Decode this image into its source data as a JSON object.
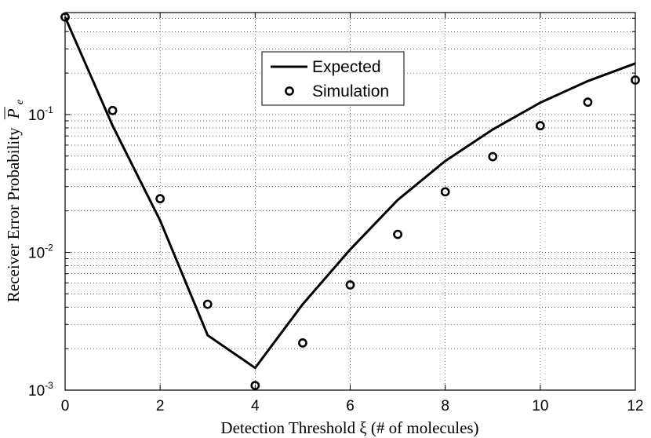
{
  "chart_data": {
    "type": "line",
    "xlabel": "Detection Threshold ξ (# of molecules)",
    "ylabel": "Receiver Error Probability",
    "ylabel_symbol": "P",
    "ylabel_subscript": "e",
    "xlim": [
      0,
      12
    ],
    "ylim": [
      0.001,
      0.55
    ],
    "yscale": "log",
    "grid": true,
    "legend_position": "top-center",
    "x_ticks": [
      "0",
      "2",
      "4",
      "6",
      "8",
      "10",
      "12"
    ],
    "y_ticks": [
      {
        "base": "10",
        "exp": "-3"
      },
      {
        "base": "10",
        "exp": "-2"
      },
      {
        "base": "10",
        "exp": "-1"
      }
    ],
    "x": [
      0,
      1,
      2,
      3,
      4,
      5,
      6,
      7,
      8,
      9,
      10,
      11,
      12
    ],
    "series": [
      {
        "name": "Expected",
        "style": "line",
        "color": "#000000",
        "values": [
          0.51,
          0.083,
          0.017,
          0.0025,
          0.00145,
          0.0042,
          0.0105,
          0.024,
          0.046,
          0.078,
          0.122,
          0.175,
          0.235
        ]
      },
      {
        "name": "Simulation",
        "style": "marker-circle",
        "color": "#000000",
        "values": [
          0.51,
          0.107,
          0.0245,
          0.0042,
          0.00108,
          0.0022,
          0.0058,
          0.0135,
          0.0275,
          0.0495,
          0.083,
          0.123,
          0.178
        ]
      }
    ]
  }
}
